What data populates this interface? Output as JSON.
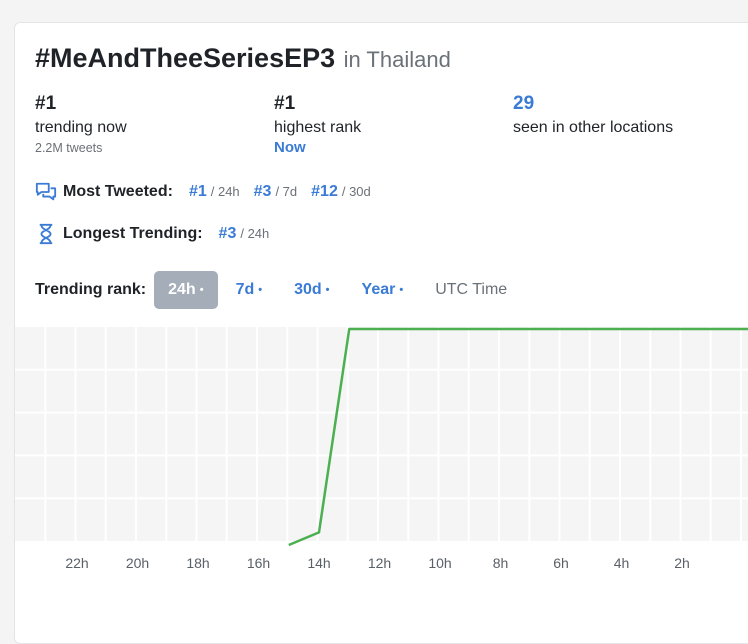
{
  "header": {
    "hashtag": "#MeAndTheeSeriesEP3",
    "location_text": "in Thailand"
  },
  "stats": [
    {
      "value": "#1",
      "label": "trending now",
      "sub": "2.2M tweets"
    },
    {
      "value": "#1",
      "label": "highest rank",
      "link": "Now"
    },
    {
      "value": "29",
      "label": "seen in other locations"
    }
  ],
  "most_tweeted": {
    "label": "Most Tweeted:",
    "icon": "chat-bubbles-icon",
    "ranks": [
      {
        "rank": "#1",
        "period": "/ 24h"
      },
      {
        "rank": "#3",
        "period": "/ 7d"
      },
      {
        "rank": "#12",
        "period": "/ 30d"
      }
    ]
  },
  "longest_trending": {
    "label": "Longest Trending:",
    "icon": "hourglass-icon",
    "ranks": [
      {
        "rank": "#3",
        "period": "/ 24h"
      }
    ]
  },
  "trending_rank": {
    "label": "Trending rank:",
    "tabs": [
      {
        "label": "24h",
        "dot": "•",
        "active": true
      },
      {
        "label": "7d",
        "dot": "•",
        "active": false
      },
      {
        "label": "30d",
        "dot": "•",
        "active": false
      },
      {
        "label": "Year",
        "dot": "•",
        "active": false
      }
    ],
    "timezone": "UTC Time"
  },
  "colors": {
    "accent": "#3a7bd5",
    "line": "#4caf50",
    "grid": "#f0f0f0",
    "tab_active_bg": "#a4adb8"
  },
  "chart_data": {
    "type": "line",
    "x_ticks": [
      "22h",
      "20h",
      "18h",
      "16h",
      "14h",
      "12h",
      "10h",
      "8h",
      "6h",
      "4h",
      "2h"
    ],
    "series": [
      {
        "points": [
          {
            "hours_ago": 15,
            "rank": 51
          },
          {
            "hours_ago": 14,
            "rank": 48
          },
          {
            "hours_ago": 13,
            "rank": 1
          },
          {
            "hours_ago": 0,
            "rank": 1
          }
        ]
      }
    ],
    "x_range_hours_ago": [
      24,
      0
    ],
    "y_range_rank": [
      1,
      50
    ],
    "y_inverted": true,
    "grid": true
  }
}
